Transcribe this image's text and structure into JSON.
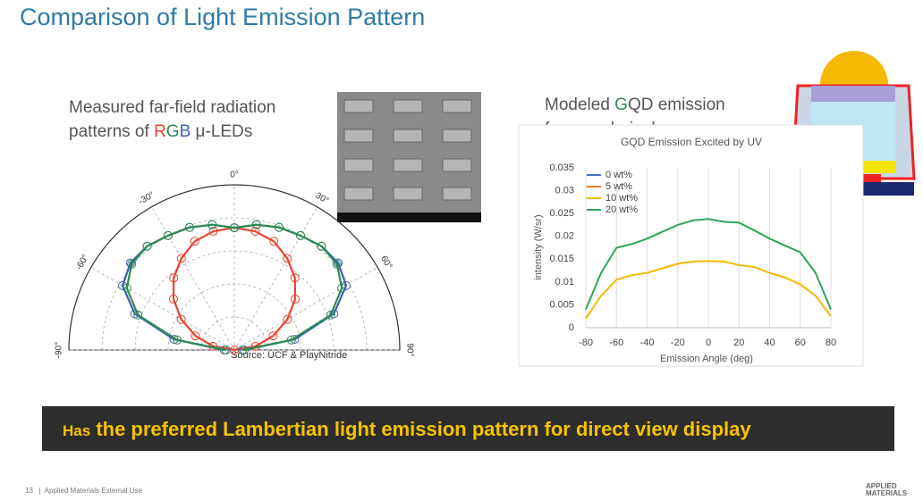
{
  "title": "Comparison of Light Emission Pattern",
  "left_caption": {
    "line1": "Measured far-field radiation",
    "line2_start": "patterns of ",
    "r": "R",
    "g": "G",
    "b": "B",
    "line2_end": " μ-LEDs"
  },
  "right_caption": {
    "start": "Modeled ",
    "g": "G",
    "end": "QD emission",
    "line2": "from   subpixel"
  },
  "source": "Source: UCF & PlayNitride",
  "banner": {
    "lead": "Has",
    "text": "the preferred Lambertian light emission pattern for direct view display"
  },
  "footer": "13   |  Applied Materials External Use",
  "logo": {
    "line1": "APPLIED",
    "line2": "MATERIALS"
  },
  "chart_data": [
    {
      "type": "polar",
      "angles": [
        -90,
        -80,
        -70,
        -60,
        -50,
        -40,
        -30,
        -20,
        -10,
        0,
        10,
        20,
        30,
        40,
        50,
        60,
        70,
        80,
        90
      ],
      "thetaticks": [
        {
          "value": -90,
          "label": "-90°"
        },
        {
          "value": -60,
          "label": "-60°"
        },
        {
          "value": -30,
          "label": "-30°"
        },
        {
          "value": 0,
          "label": "0°"
        },
        {
          "value": 30,
          "label": "30°"
        },
        {
          "value": 60,
          "label": "60°"
        },
        {
          "value": 90,
          "label": "90°"
        }
      ],
      "rlim": [
        0,
        1
      ],
      "rticks": [
        0.2,
        0.4,
        0.6,
        0.8,
        1
      ],
      "series": [
        {
          "color": "#e8432e",
          "values": [
            0,
            0.13,
            0.25,
            0.37,
            0.48,
            0.57,
            0.64,
            0.7,
            0.73,
            0.74,
            0.73,
            0.7,
            0.64,
            0.57,
            0.48,
            0.37,
            0.25,
            0.13,
            0
          ]
        },
        {
          "color": "#3f5fb5",
          "values": [
            0.06,
            0.37,
            0.64,
            0.78,
            0.82,
            0.82,
            0.8,
            0.79,
            0.77,
            0.74,
            0.77,
            0.79,
            0.8,
            0.82,
            0.82,
            0.78,
            0.64,
            0.37,
            0.06
          ]
        },
        {
          "color": "#2e8b4e",
          "values": [
            0.05,
            0.35,
            0.62,
            0.75,
            0.81,
            0.82,
            0.8,
            0.79,
            0.77,
            0.74,
            0.77,
            0.79,
            0.8,
            0.82,
            0.81,
            0.75,
            0.62,
            0.35,
            0.05
          ]
        }
      ]
    },
    {
      "type": "line",
      "title": "GQD Emission Excited by UV",
      "xlabel": "Emission Angle (deg)",
      "ylabel": "intensity (W/sr)",
      "x": [
        -80,
        -70,
        -60,
        -50,
        -40,
        -30,
        -20,
        -10,
        0,
        10,
        20,
        30,
        40,
        50,
        60,
        70,
        80
      ],
      "xlim": [
        -80,
        80
      ],
      "xticks": [
        -80,
        -60,
        -40,
        -20,
        0,
        20,
        40,
        60,
        80
      ],
      "ylim": [
        0,
        0.035
      ],
      "yticks": [
        0,
        0.005,
        0.01,
        0.015,
        0.02,
        0.025,
        0.03,
        0.035
      ],
      "series": [
        {
          "name": "0 wt%",
          "color": "#4472c4",
          "values": [
            null,
            null,
            null,
            null,
            null,
            null,
            null,
            null,
            null,
            null,
            null,
            null,
            null,
            null,
            null,
            null,
            null
          ]
        },
        {
          "name": "5 wt%",
          "color": "#ed7d31",
          "values": [
            null,
            null,
            null,
            null,
            null,
            null,
            null,
            null,
            null,
            null,
            null,
            null,
            null,
            null,
            null,
            null,
            null
          ]
        },
        {
          "name": "10 wt%",
          "color": "#f5b800",
          "values": [
            0.002,
            0.007,
            0.0105,
            0.0115,
            0.012,
            0.013,
            0.014,
            0.0145,
            0.0146,
            0.0145,
            0.0137,
            0.0133,
            0.012,
            0.011,
            0.0095,
            0.007,
            0.0025
          ]
        },
        {
          "name": "20 wt%",
          "color": "#2ea55a",
          "values": [
            0.004,
            0.012,
            0.0175,
            0.0183,
            0.0195,
            0.021,
            0.0225,
            0.0235,
            0.0238,
            0.0232,
            0.023,
            0.0213,
            0.0195,
            0.018,
            0.0165,
            0.012,
            0.004
          ]
        }
      ]
    }
  ]
}
